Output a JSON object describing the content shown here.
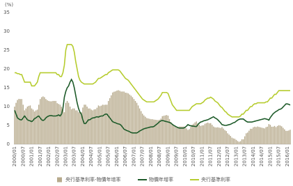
{
  "chart_data": {
    "type": "combo",
    "y_label": "(%)",
    "ylim": [
      0,
      35
    ],
    "yticks": [
      0,
      5,
      10,
      15,
      20,
      25,
      30,
      35
    ],
    "grid": false,
    "legend": "bottom",
    "categories": [
      "2000/01",
      null,
      null,
      null,
      null,
      null,
      "2000/07",
      null,
      null,
      null,
      null,
      null,
      "2001/01",
      null,
      null,
      null,
      null,
      null,
      "2001/07",
      null,
      null,
      null,
      null,
      null,
      "2002/01",
      null,
      null,
      null,
      null,
      null,
      "2002/07",
      null,
      null,
      null,
      null,
      null,
      "2003/01",
      null,
      null,
      null,
      null,
      null,
      "2003/07",
      null,
      null,
      null,
      null,
      null,
      "2004/01",
      null,
      null,
      null,
      null,
      null,
      "2004/07",
      null,
      null,
      null,
      null,
      null,
      "2005/01",
      null,
      null,
      null,
      null,
      null,
      "2005/07",
      null,
      null,
      null,
      null,
      null,
      "2006/01",
      null,
      null,
      null,
      null,
      null,
      "2006/07",
      null,
      null,
      null,
      null,
      null,
      "2007/01",
      null,
      null,
      null,
      null,
      null,
      "2007/07",
      null,
      null,
      null,
      null,
      null,
      "2008/01",
      null,
      null,
      null,
      null,
      null,
      "2008/07",
      null,
      null,
      null,
      null,
      null,
      "2009/01",
      null,
      null,
      null,
      null,
      null,
      "2009/07",
      null,
      null,
      null,
      null,
      null,
      "2010/01",
      null,
      null,
      null,
      null,
      null,
      "2010/07",
      null,
      null,
      null,
      null,
      null,
      "2011/01",
      null,
      null,
      null,
      null,
      null,
      "2011/07",
      null,
      null,
      null,
      null,
      null,
      "2012/01",
      null,
      null,
      null,
      null,
      null,
      "2012/07",
      null,
      null,
      null,
      null,
      null,
      "2013/01",
      null,
      null,
      null,
      null,
      null,
      "2013/07",
      null,
      null,
      null,
      null,
      null,
      "2014/01",
      null,
      null,
      null,
      null,
      null,
      "2014/07",
      null,
      null,
      null,
      null,
      null,
      "2015/01",
      null,
      null,
      null,
      null,
      null,
      "2015/07",
      null,
      null,
      null,
      null,
      null,
      "2016/01",
      null,
      null
    ],
    "series": [
      {
        "name": "央行基準利率-物價年增率",
        "type": "bar",
        "color": "#b7aa8c",
        "values": [
          10,
          11,
          11.75,
          12.05,
          12,
          12,
          10.5,
          9,
          9.5,
          10,
          10.2,
          10.3,
          9.5,
          9.2,
          8.7,
          9,
          9.2,
          10.5,
          12,
          12.5,
          12.7,
          12.5,
          12,
          11.7,
          11.5,
          11.4,
          11.4,
          11.5,
          11.5,
          11.5,
          10.9,
          10.7,
          10.5,
          10,
          9.5,
          8.5,
          11,
          11.5,
          11,
          10,
          9.3,
          9.5,
          9.5,
          9,
          9,
          8.5,
          8.5,
          8.5,
          9.75,
          10.5,
          10.5,
          10,
          9.5,
          9.5,
          9.2,
          9,
          9.25,
          9.3,
          9.7,
          10.3,
          10.1,
          10.25,
          10.5,
          10.45,
          10.5,
          10.5,
          11.5,
          12.25,
          13,
          13.75,
          13.95,
          14.05,
          14.25,
          14.35,
          14.2,
          14,
          14,
          14,
          13.7,
          13.65,
          13.5,
          13.2,
          12.9,
          12.5,
          12,
          11.5,
          11,
          10.3,
          9.5,
          8.8,
          8.1,
          7.65,
          7.3,
          6.95,
          6.85,
          6.75,
          6.65,
          6.65,
          6.55,
          6.5,
          6.45,
          6.4,
          6.5,
          6.8,
          7.45,
          7.55,
          7.65,
          7.75,
          7.6,
          6.7,
          5.9,
          5.2,
          5,
          4.7,
          4.4,
          4.6,
          4.7,
          4.7,
          4.7,
          4.7,
          4.5,
          4.2,
          3.8,
          4,
          4.6,
          5.2,
          5.45,
          5.8,
          6.05,
          5.55,
          5.15,
          4.85,
          5,
          5.05,
          5.45,
          5.6,
          5.75,
          5.55,
          5.6,
          5.15,
          4.7,
          4.5,
          4.45,
          4.5,
          4.4,
          4.3,
          4.55,
          4.15,
          3.75,
          3.5,
          2.9,
          2.55,
          2.2,
          1.75,
          1.55,
          1.45,
          1.15,
          0.85,
          0.65,
          0.8,
          1.3,
          1.3,
          2.1,
          2.9,
          3.1,
          3.6,
          4.1,
          4.1,
          4.5,
          4.65,
          4.55,
          4.7,
          4.6,
          4.5,
          4.4,
          4.3,
          4.2,
          4.55,
          4.65,
          5.35,
          5.15,
          4.65,
          4.65,
          4.85,
          4.55,
          4.85,
          5.05,
          4.95,
          4.75,
          4.35,
          3.95,
          3.55,
          3.55,
          3.65,
          3.85
        ]
      },
      {
        "name": "物價年增率",
        "type": "line",
        "color": "#1e5b2a",
        "values": [
          9,
          8,
          7,
          6.7,
          6.5,
          6.5,
          7,
          7.5,
          7,
          6.5,
          6.3,
          6.2,
          6,
          6.3,
          6.8,
          7,
          7.3,
          7.5,
          7,
          6.5,
          6.3,
          6.5,
          7,
          7.3,
          7.5,
          7.6,
          7.6,
          7.5,
          7.5,
          7.5,
          7.6,
          7.8,
          7.5,
          8,
          9.5,
          12.5,
          14,
          15,
          15.5,
          16.5,
          17.2,
          16.5,
          15,
          13,
          11,
          9.5,
          8.5,
          8,
          6.5,
          5.5,
          5.5,
          6,
          6.5,
          6.5,
          6.8,
          7,
          7,
          7.2,
          7.3,
          7.2,
          7.4,
          7.5,
          7.5,
          7.8,
          8,
          8,
          7.5,
          7,
          6.5,
          6,
          5.8,
          5.7,
          5.5,
          5.4,
          5.3,
          5,
          4.5,
          4,
          3.8,
          3.6,
          3.5,
          3.3,
          3.1,
          3,
          3,
          3,
          3,
          3.2,
          3.5,
          3.7,
          3.9,
          4.1,
          4.2,
          4.3,
          4.4,
          4.5,
          4.6,
          4.6,
          4.7,
          5,
          5.3,
          5.6,
          6,
          6.2,
          6.3,
          6.2,
          6.1,
          6,
          5.9,
          5.8,
          5.6,
          5.3,
          5,
          4.8,
          4.6,
          4.4,
          4.3,
          4.3,
          4.3,
          4.3,
          4.5,
          4.8,
          5.2,
          5,
          4.9,
          4.8,
          4.8,
          4.7,
          4.7,
          5.2,
          5.6,
          5.9,
          6,
          6.2,
          6.3,
          6.4,
          6.5,
          6.7,
          6.9,
          7.1,
          7.3,
          7,
          6.8,
          6.5,
          6.1,
          5.7,
          5.2,
          5.1,
          5,
          5,
          5.1,
          5.2,
          5.3,
          5.5,
          5.7,
          5.8,
          6.1,
          6.4,
          6.6,
          6.7,
          6.7,
          6.7,
          6.4,
          6.1,
          5.9,
          5.9,
          5.9,
          5.9,
          6,
          6.1,
          6.2,
          6.3,
          6.4,
          6.5,
          6.6,
          6.7,
          6.8,
          6.7,
          6.6,
          6.4,
          7.1,
          7.6,
          8.1,
          8.4,
          8.7,
          8.9,
          9.2,
          9.3,
          9.5,
          9.9,
          10.3,
          10.7,
          10.7,
          10.6,
          10.4
        ]
      },
      {
        "name": "央行基準利率",
        "type": "line",
        "color": "#b6cc2f",
        "values": [
          19,
          19,
          18.75,
          18.75,
          18.5,
          18.5,
          17.5,
          16.5,
          16.5,
          16.5,
          16.5,
          16.5,
          15.5,
          15.5,
          15.5,
          16,
          16.5,
          18,
          19,
          19,
          19,
          19,
          19,
          19,
          19,
          19,
          19,
          19,
          19,
          19,
          18.5,
          18.5,
          18,
          18,
          19,
          21,
          25,
          26.5,
          26.5,
          26.5,
          26.5,
          26,
          24.5,
          22,
          20,
          18,
          17,
          16.5,
          16.25,
          16,
          16,
          16,
          16,
          16,
          16,
          16,
          16.25,
          16.5,
          17,
          17.5,
          17.5,
          17.75,
          18,
          18.25,
          18.5,
          18.5,
          19,
          19.25,
          19.5,
          19.75,
          19.75,
          19.75,
          19.75,
          19.75,
          19.5,
          19,
          18.5,
          18,
          17.5,
          17.25,
          17,
          16.5,
          16,
          15.5,
          15,
          14.5,
          14,
          13.5,
          13,
          12.5,
          12,
          11.75,
          11.5,
          11.25,
          11.25,
          11.25,
          11.25,
          11.25,
          11.25,
          11.5,
          11.75,
          12,
          12.5,
          13,
          13.75,
          13.75,
          13.75,
          13.75,
          13.5,
          12.5,
          11.5,
          10.5,
          10,
          9.5,
          9,
          9,
          9,
          9,
          9,
          9,
          9,
          9,
          9,
          9,
          9.5,
          10,
          10.25,
          10.5,
          10.75,
          10.75,
          10.75,
          10.75,
          11,
          11.25,
          11.75,
          12,
          12.25,
          12.25,
          12.5,
          12.25,
          12,
          11.5,
          11.25,
          11,
          10.5,
          10,
          9.75,
          9.25,
          8.75,
          8.5,
          8,
          7.75,
          7.5,
          7.25,
          7.25,
          7.25,
          7.25,
          7.25,
          7.25,
          7.5,
          8,
          8,
          8.5,
          9,
          9,
          9.5,
          10,
          10,
          10.5,
          10.75,
          10.75,
          11,
          11,
          11,
          11,
          11,
          11,
          11.25,
          11.25,
          11.75,
          12.25,
          12.25,
          12.75,
          13.25,
          13.25,
          13.75,
          14.25,
          14.25,
          14.25,
          14.25,
          14.25,
          14.25,
          14.25,
          14.25,
          14.25
        ]
      }
    ]
  }
}
